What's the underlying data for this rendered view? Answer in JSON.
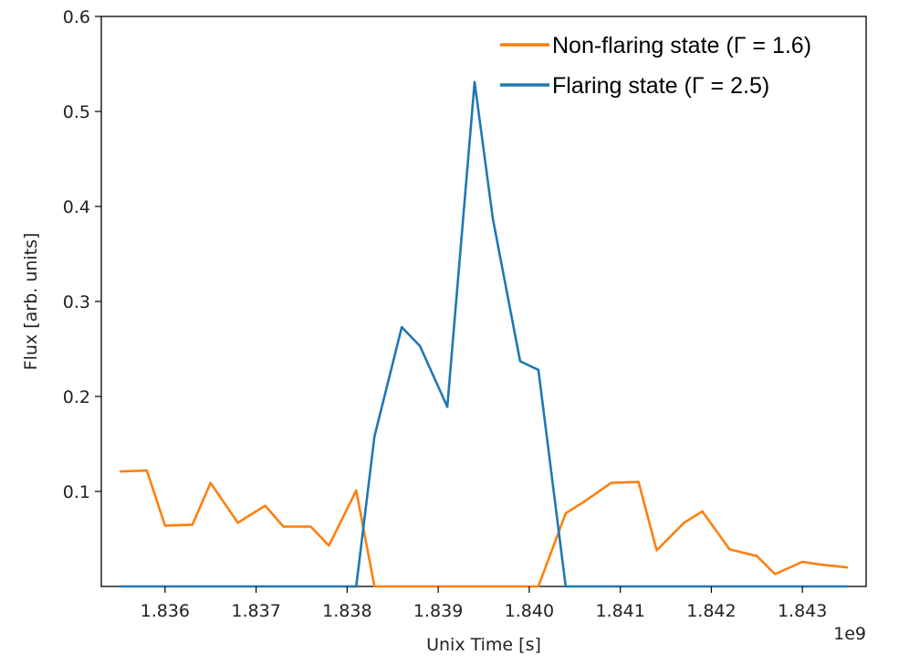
{
  "chart_data": {
    "type": "line",
    "xlabel": "Unix Time [s]",
    "ylabel": "Flux [arb. units]",
    "x_offset_label": "1e9",
    "xlim": [
      1.8353,
      1.8437
    ],
    "ylim": [
      0,
      0.6
    ],
    "xticks": [
      1.836,
      1.837,
      1.838,
      1.839,
      1.84,
      1.841,
      1.842,
      1.843
    ],
    "xtick_labels": [
      "1.836",
      "1.837",
      "1.838",
      "1.839",
      "1.840",
      "1.841",
      "1.842",
      "1.843"
    ],
    "yticks": [
      0.1,
      0.2,
      0.3,
      0.4,
      0.5,
      0.6
    ],
    "ytick_labels": [
      "0.1",
      "0.2",
      "0.3",
      "0.4",
      "0.5",
      "0.6"
    ],
    "grid": false,
    "legend_position": "top-right",
    "series": [
      {
        "name": "Non-flaring state (Γ = 1.6)",
        "color": "#ff7f0e",
        "x": [
          1.8355,
          1.8358,
          1.836,
          1.8363,
          1.8365,
          1.8368,
          1.8371,
          1.8373,
          1.8376,
          1.8378,
          1.8381,
          1.8383,
          1.8386,
          1.8388,
          1.8391,
          1.8394,
          1.8396,
          1.8399,
          1.8401,
          1.8404,
          1.8406,
          1.8409,
          1.8412,
          1.8414,
          1.8417,
          1.8419,
          1.8422,
          1.8425,
          1.8427,
          1.843,
          1.8432,
          1.8435
        ],
        "values": [
          0.121,
          0.122,
          0.064,
          0.065,
          0.109,
          0.067,
          0.085,
          0.063,
          0.063,
          0.043,
          0.101,
          0.0,
          0.0,
          0.0,
          0.0,
          0.0,
          0.0,
          0.0,
          0.0,
          0.077,
          0.089,
          0.109,
          0.11,
          0.038,
          0.067,
          0.079,
          0.039,
          0.032,
          0.013,
          0.026,
          0.023,
          0.02
        ]
      },
      {
        "name": "Flaring state (Γ = 2.5)",
        "color": "#1f77b4",
        "x": [
          1.8355,
          1.8358,
          1.836,
          1.8363,
          1.8365,
          1.8368,
          1.8371,
          1.8373,
          1.8376,
          1.8378,
          1.8381,
          1.8383,
          1.8386,
          1.8388,
          1.8391,
          1.8394,
          1.8396,
          1.8399,
          1.8401,
          1.8404,
          1.8406,
          1.8409,
          1.8412,
          1.8414,
          1.8417,
          1.8419,
          1.8422,
          1.8425,
          1.8427,
          1.843,
          1.8432,
          1.8435
        ],
        "values": [
          0.0,
          0.0,
          0.0,
          0.0,
          0.0,
          0.0,
          0.0,
          0.0,
          0.0,
          0.0,
          0.0,
          0.158,
          0.273,
          0.253,
          0.189,
          0.531,
          0.387,
          0.237,
          0.228,
          0.0,
          0.0,
          0.0,
          0.0,
          0.0,
          0.0,
          0.0,
          0.0,
          0.0,
          0.0,
          0.0,
          0.0,
          0.0
        ]
      }
    ]
  }
}
